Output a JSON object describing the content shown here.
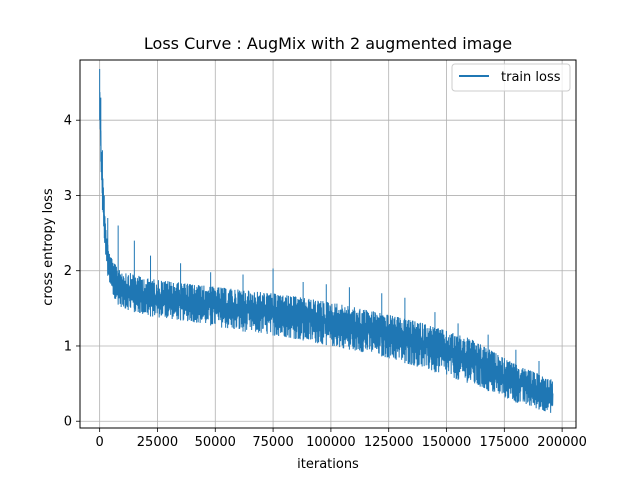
{
  "chart_data": {
    "type": "line",
    "title": "Loss Curve : AugMix with 2 augmented image",
    "xlabel": "iterations",
    "ylabel": "cross entropy loss",
    "xlim": [
      -8500,
      206000
    ],
    "ylim": [
      -0.09,
      4.8
    ],
    "xticks": [
      0,
      25000,
      50000,
      75000,
      100000,
      125000,
      150000,
      175000,
      200000
    ],
    "xtick_labels": [
      "0",
      "25000",
      "50000",
      "75000",
      "100000",
      "125000",
      "150000",
      "175000",
      "200000"
    ],
    "yticks": [
      0,
      1,
      2,
      3,
      4
    ],
    "ytick_labels": [
      "0",
      "1",
      "2",
      "3",
      "4"
    ],
    "grid": true,
    "legend": {
      "position": "top-right",
      "entries": [
        "train loss"
      ]
    },
    "series": [
      {
        "name": "train loss",
        "color": "#1f77b4",
        "x_end": 196000,
        "low": [
          [
            0,
            4.0
          ],
          [
            1000,
            2.9
          ],
          [
            2500,
            2.2
          ],
          [
            4000,
            1.8
          ],
          [
            6000,
            1.6
          ],
          [
            10000,
            1.5
          ],
          [
            20000,
            1.4
          ],
          [
            40000,
            1.32
          ],
          [
            60000,
            1.2
          ],
          [
            80000,
            1.12
          ],
          [
            100000,
            1.0
          ],
          [
            120000,
            0.88
          ],
          [
            140000,
            0.7
          ],
          [
            160000,
            0.5
          ],
          [
            180000,
            0.25
          ],
          [
            196000,
            0.1
          ]
        ],
        "high": [
          [
            0,
            4.4
          ],
          [
            1000,
            3.4
          ],
          [
            2500,
            2.6
          ],
          [
            4000,
            2.25
          ],
          [
            6000,
            2.1
          ],
          [
            10000,
            2.0
          ],
          [
            20000,
            1.9
          ],
          [
            40000,
            1.82
          ],
          [
            60000,
            1.75
          ],
          [
            80000,
            1.68
          ],
          [
            100000,
            1.58
          ],
          [
            120000,
            1.45
          ],
          [
            140000,
            1.3
          ],
          [
            160000,
            1.1
          ],
          [
            180000,
            0.75
          ],
          [
            196000,
            0.55
          ]
        ],
        "spikes": [
          [
            0,
            4.68
          ],
          [
            500,
            4.3
          ],
          [
            1200,
            3.6
          ],
          [
            2000,
            3.0
          ],
          [
            3500,
            2.7
          ],
          [
            8000,
            2.6
          ],
          [
            15000,
            2.4
          ],
          [
            22000,
            2.2
          ],
          [
            35000,
            2.1
          ],
          [
            48000,
            1.98
          ],
          [
            62000,
            1.95
          ],
          [
            75000,
            2.03
          ],
          [
            88000,
            1.85
          ],
          [
            98000,
            1.82
          ],
          [
            108000,
            1.78
          ],
          [
            122000,
            1.7
          ],
          [
            132000,
            1.64
          ],
          [
            145000,
            1.45
          ],
          [
            155000,
            1.3
          ],
          [
            168000,
            1.15
          ],
          [
            180000,
            0.95
          ],
          [
            190000,
            0.8
          ]
        ]
      }
    ]
  }
}
